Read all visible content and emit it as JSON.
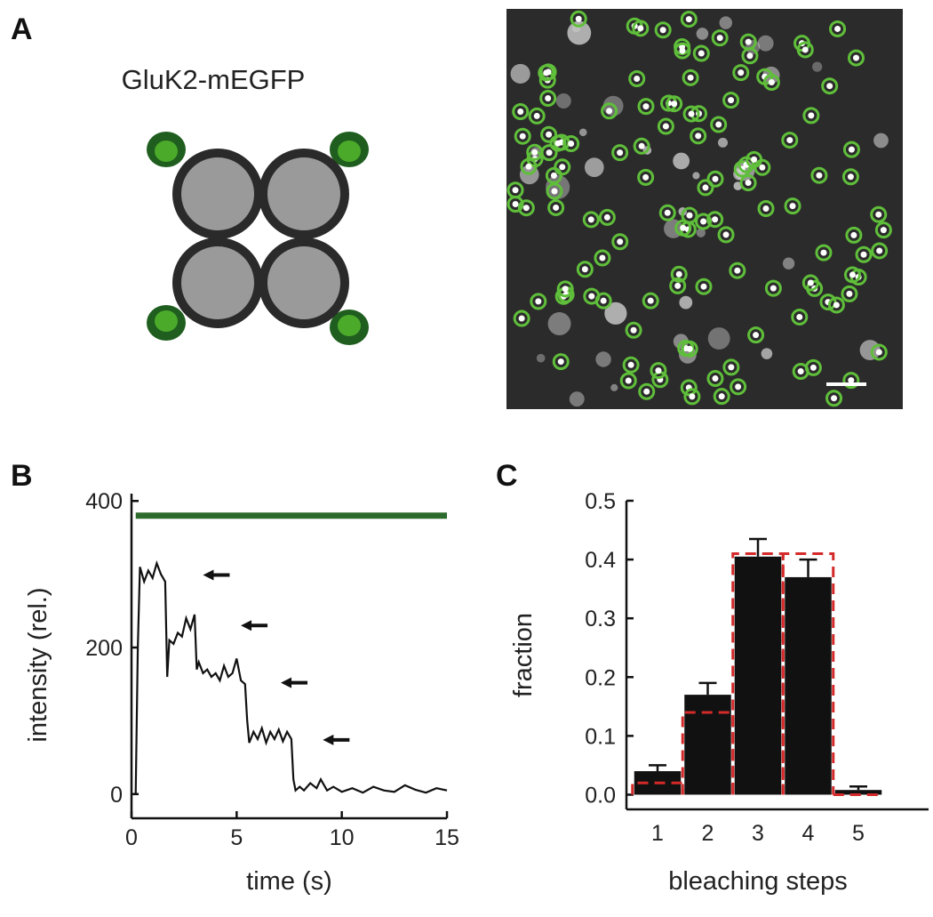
{
  "panels": {
    "a": "A",
    "b": "B",
    "c": "C"
  },
  "diagram": {
    "title": "GluK2-mEGFP"
  },
  "chart_data": [
    {
      "type": "line",
      "xlabel": "time (s)",
      "ylabel": "intensity (rel.)",
      "x": [
        0.2,
        0.3,
        0.4,
        0.6,
        0.8,
        1.0,
        1.2,
        1.4,
        1.6,
        1.7,
        1.8,
        2.0,
        2.2,
        2.4,
        2.6,
        2.8,
        3.0,
        3.1,
        3.2,
        3.4,
        3.6,
        3.8,
        4.0,
        4.2,
        4.4,
        4.6,
        4.8,
        5.0,
        5.2,
        5.4,
        5.5,
        5.6,
        5.8,
        6.0,
        6.2,
        6.4,
        6.6,
        6.8,
        7.0,
        7.2,
        7.4,
        7.6,
        7.7,
        7.8,
        8.0,
        8.2,
        8.5,
        8.8,
        9.0,
        9.3,
        9.6,
        10.0,
        10.5,
        11.0,
        11.5,
        12.0,
        12.5,
        13.0,
        13.5,
        14.0,
        14.5,
        15.0
      ],
      "values": [
        0,
        200,
        310,
        290,
        305,
        295,
        315,
        300,
        290,
        160,
        210,
        205,
        220,
        215,
        240,
        225,
        245,
        170,
        180,
        165,
        170,
        160,
        165,
        155,
        175,
        160,
        165,
        185,
        155,
        150,
        100,
        70,
        85,
        75,
        90,
        70,
        85,
        75,
        88,
        72,
        85,
        75,
        20,
        5,
        10,
        5,
        15,
        8,
        20,
        5,
        10,
        3,
        8,
        2,
        10,
        5,
        3,
        12,
        6,
        2,
        8,
        5
      ],
      "color": "#111111",
      "xlim": [
        0,
        15
      ],
      "xticks": [
        0,
        5,
        10,
        15
      ],
      "ylim": [
        -33,
        410
      ],
      "yticks": [
        0,
        200,
        400
      ],
      "illumination": {
        "x": [
          0.2,
          15
        ],
        "y": 380,
        "color": "#2d6b2d"
      },
      "arrows": [
        {
          "x": 3.4,
          "y": 299
        },
        {
          "x": 5.2,
          "y": 230
        },
        {
          "x": 7.1,
          "y": 152
        },
        {
          "x": 9.1,
          "y": 74
        }
      ]
    },
    {
      "type": "bar",
      "xlabel": "bleaching steps",
      "ylabel": "fraction",
      "categories": [
        "1",
        "2",
        "3",
        "4",
        "5"
      ],
      "values": [
        0.04,
        0.17,
        0.405,
        0.37,
        0.008
      ],
      "errors": [
        0.01,
        0.02,
        0.03,
        0.03,
        0.006
      ],
      "color": "#111111",
      "fit": [
        0.02,
        0.14,
        0.41,
        0.41,
        0
      ],
      "fit_color": "#d42a2a",
      "ylim": [
        -0.025,
        0.5
      ],
      "yticks": [
        {
          "value": 0,
          "label": "0.0"
        },
        0.1,
        0.2,
        0.3,
        0.4,
        0.5
      ]
    }
  ]
}
